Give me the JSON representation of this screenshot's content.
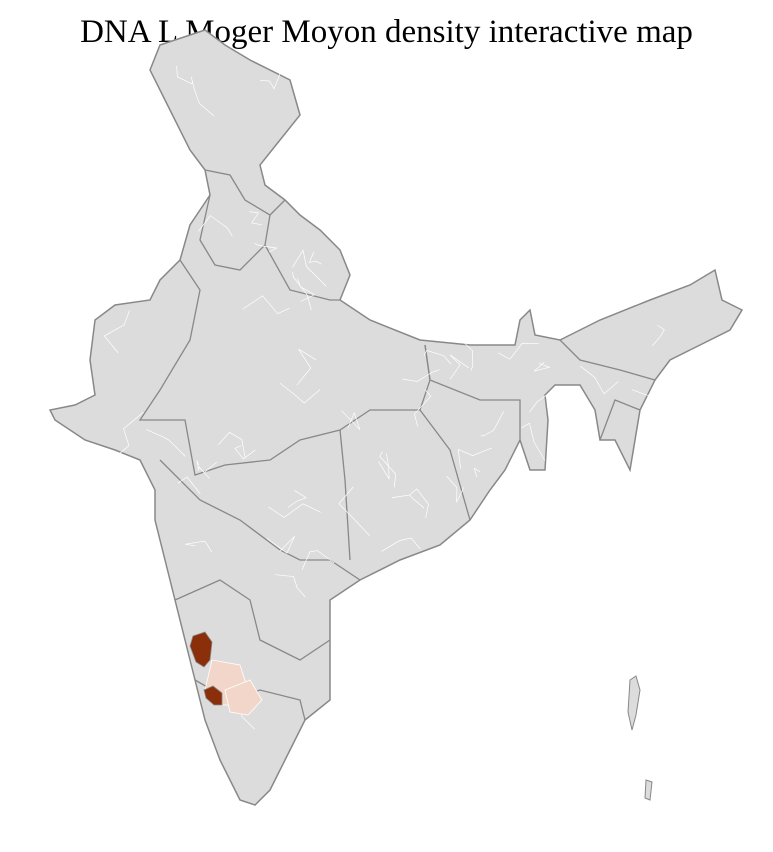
{
  "title": "DNA L Moger Moyon density interactive map",
  "colors": {
    "land": "#dcdcdc",
    "district_border": "#ffffff",
    "state_border": "#888888",
    "high_density": "#8b2e0a",
    "low_density": "#f2d6c9"
  },
  "highlighted_regions": [
    {
      "level": "high"
    },
    {
      "level": "high"
    },
    {
      "level": "low"
    },
    {
      "level": "low"
    }
  ]
}
